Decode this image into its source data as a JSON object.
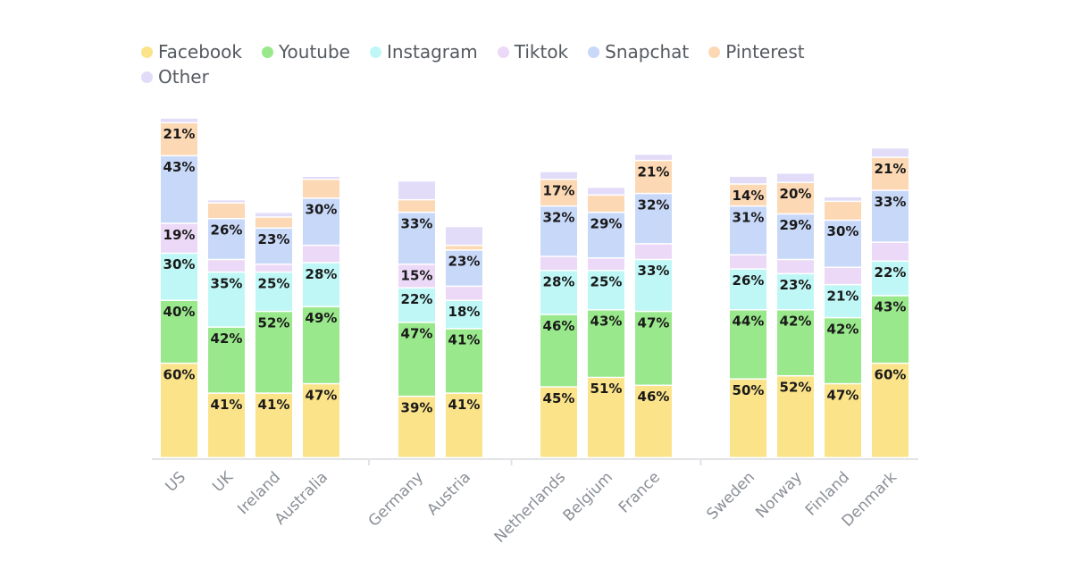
{
  "chart_data": {
    "type": "bar",
    "stacked": true,
    "grid": false,
    "legend_position": "top-left",
    "title": "",
    "xlabel": "",
    "ylabel": "",
    "categories": [
      "US",
      "UK",
      "Ireland",
      "Australia",
      "Germany",
      "Austria",
      "Netherlands",
      "Belgium",
      "France",
      "Sweden",
      "Norway",
      "Finland",
      "Denmark"
    ],
    "groups": [
      [
        0,
        1,
        2,
        3
      ],
      [
        4,
        5
      ],
      [
        6,
        7,
        8
      ],
      [
        9,
        10,
        11,
        12
      ]
    ],
    "series": [
      {
        "name": "Facebook",
        "color": "#fbe38a",
        "values": [
          60,
          41,
          41,
          47,
          39,
          41,
          45,
          51,
          46,
          50,
          52,
          47,
          60
        ]
      },
      {
        "name": "Youtube",
        "color": "#9ae88c",
        "values": [
          40,
          42,
          52,
          49,
          47,
          41,
          46,
          43,
          47,
          44,
          42,
          42,
          43
        ]
      },
      {
        "name": "Instagram",
        "color": "#bff7f7",
        "values": [
          30,
          35,
          25,
          28,
          22,
          18,
          28,
          25,
          33,
          26,
          23,
          21,
          22
        ]
      },
      {
        "name": "Tiktok",
        "color": "#ecd9f7",
        "values": [
          19,
          8,
          5,
          11,
          15,
          9,
          9,
          8,
          10,
          9,
          9,
          11,
          12
        ]
      },
      {
        "name": "Snapchat",
        "color": "#c8d8f8",
        "values": [
          43,
          26,
          23,
          30,
          33,
          23,
          32,
          29,
          32,
          31,
          29,
          30,
          33
        ]
      },
      {
        "name": "Pinterest",
        "color": "#fcd8b4",
        "values": [
          21,
          10,
          7,
          12,
          8,
          3,
          17,
          11,
          21,
          14,
          20,
          12,
          21
        ]
      },
      {
        "name": "Other",
        "color": "#e2dcf9",
        "values": [
          3,
          2,
          3,
          2,
          12,
          12,
          5,
          5,
          4,
          5,
          6,
          3,
          6
        ]
      }
    ],
    "labeled_series": [
      "Facebook",
      "Youtube",
      "Instagram",
      "Tiktok",
      "Snapchat",
      "Pinterest"
    ],
    "label_min_value": 14,
    "value_suffix": "%"
  }
}
